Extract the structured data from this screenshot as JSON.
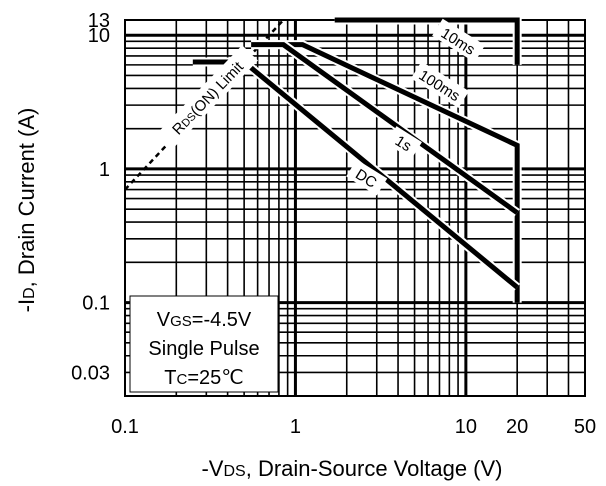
{
  "chart_data": {
    "type": "line",
    "x_scale": "log",
    "y_scale": "log",
    "xlim": [
      0.1,
      50
    ],
    "ylim": [
      0.02,
      13
    ],
    "xlabel": {
      "prefix": "-V",
      "sub": "DS",
      "rest": ", Drain-Source Voltage (V)"
    },
    "ylabel": {
      "prefix": "-I",
      "sub": "D",
      "rest": ", Drain Current (A)"
    },
    "x_ticks": [
      {
        "value": 0.1,
        "label": "0.1"
      },
      {
        "value": 1,
        "label": "1"
      },
      {
        "value": 10,
        "label": "10"
      },
      {
        "value": 20,
        "label": "20"
      },
      {
        "value": 50,
        "label": "50"
      }
    ],
    "y_ticks": [
      {
        "value": 13,
        "label": "13"
      },
      {
        "value": 10,
        "label": "10"
      },
      {
        "value": 1,
        "label": "1"
      },
      {
        "value": 0.1,
        "label": "0.1"
      },
      {
        "value": 0.03,
        "label": "0.03"
      }
    ],
    "grid": true,
    "rds_limit": {
      "label": {
        "prefix": "R",
        "sub": "DS",
        "rest": "(ON) Limit"
      },
      "x": [
        0.1,
        0.85
      ],
      "y": [
        0.7,
        13
      ]
    },
    "series": [
      {
        "name": "10ms",
        "x": [
          1.7,
          20,
          20
        ],
        "y": [
          13,
          13,
          6
        ]
      },
      {
        "name": "100ms",
        "x": [
          0.55,
          1.1,
          20,
          20
        ],
        "y": [
          8.5,
          8.5,
          1.5,
          0.1
        ]
      },
      {
        "name": "1s",
        "x": [
          0.55,
          0.85,
          20
        ],
        "y": [
          8.5,
          8.5,
          0.47
        ]
      },
      {
        "name": "DC",
        "x": [
          0.25,
          0.5,
          20
        ],
        "y": [
          6.3,
          6.3,
          0.13
        ]
      }
    ],
    "annotation": {
      "line1": {
        "prefix": "V",
        "sub": "GS",
        "rest": "=-4.5V"
      },
      "line2": "Single Pulse",
      "line3": {
        "prefix": "T",
        "sub": "C",
        "rest": "=25℃"
      }
    }
  }
}
